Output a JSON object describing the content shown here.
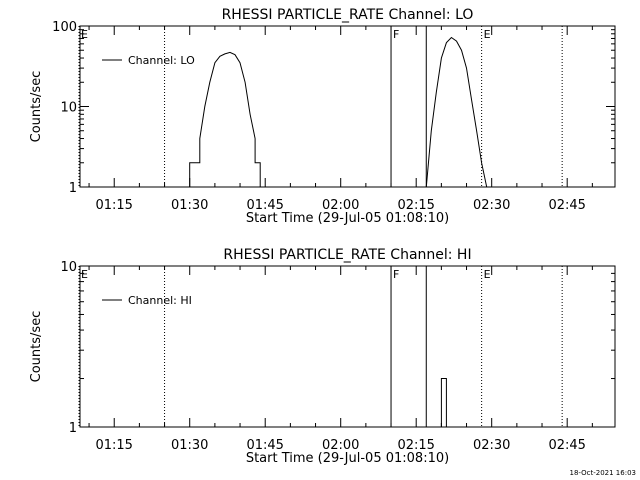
{
  "footer": {
    "timestamp": "18-Oct-2021 16:03"
  },
  "chart_data": [
    {
      "type": "line",
      "title": "RHESSI PARTICLE_RATE Channel: LO",
      "xlabel": "Start Time (29-Jul-05 01:08:10)",
      "ylabel": "Counts/sec",
      "y_scale": "log",
      "xlim_minutes": [
        68.2,
        174.5
      ],
      "ylim": [
        1,
        100
      ],
      "x_ticks": [
        "01:15",
        "01:30",
        "01:45",
        "02:00",
        "02:15",
        "02:30",
        "02:45"
      ],
      "y_ticks": [
        "1",
        "10",
        "100"
      ],
      "legend": {
        "position": "top-left",
        "entries": [
          "Channel: LO"
        ]
      },
      "markers": [
        {
          "label": "E",
          "time": "01:08",
          "style": "dotted"
        },
        {
          "label": "",
          "time": "01:25",
          "style": "dotted"
        },
        {
          "label": "F",
          "time": "02:10",
          "style": "solid"
        },
        {
          "label": "",
          "time": "02:17",
          "style": "solid"
        },
        {
          "label": "E",
          "time": "02:28",
          "style": "dotted"
        },
        {
          "label": "",
          "time": "02:44",
          "style": "dotted"
        }
      ],
      "series": [
        {
          "name": "Channel: LO",
          "x": [
            "01:30",
            "01:30",
            "01:32",
            "01:32",
            "01:33",
            "01:34",
            "01:35",
            "01:36",
            "01:37",
            "01:38",
            "01:39",
            "01:40",
            "01:41",
            "01:42",
            "01:43",
            "01:43",
            "01:44",
            "01:44"
          ],
          "values": [
            1,
            2,
            2,
            4,
            10,
            20,
            35,
            42,
            45,
            47,
            44,
            35,
            20,
            8,
            4,
            2,
            2,
            1
          ]
        },
        {
          "name": "Channel: LO",
          "x": [
            "02:17",
            "02:18",
            "02:19",
            "02:20",
            "02:21",
            "02:22",
            "02:23",
            "02:24",
            "02:25",
            "02:26",
            "02:27",
            "02:28",
            "02:28",
            "02:29"
          ],
          "values": [
            1,
            5,
            15,
            40,
            62,
            72,
            65,
            50,
            30,
            12,
            5,
            2,
            2,
            1
          ]
        }
      ]
    },
    {
      "type": "line",
      "title": "RHESSI PARTICLE_RATE Channel: HI",
      "xlabel": "Start Time (29-Jul-05 01:08:10)",
      "ylabel": "Counts/sec",
      "y_scale": "log",
      "xlim_minutes": [
        68.2,
        174.5
      ],
      "ylim": [
        1,
        10
      ],
      "x_ticks": [
        "01:15",
        "01:30",
        "01:45",
        "02:00",
        "02:15",
        "02:30",
        "02:45"
      ],
      "y_ticks": [
        "1",
        "10"
      ],
      "legend": {
        "position": "top-left",
        "entries": [
          "Channel: HI"
        ]
      },
      "markers": [
        {
          "label": "E",
          "time": "01:08",
          "style": "dotted"
        },
        {
          "label": "",
          "time": "01:25",
          "style": "dotted"
        },
        {
          "label": "F",
          "time": "02:10",
          "style": "solid"
        },
        {
          "label": "",
          "time": "02:17",
          "style": "solid"
        },
        {
          "label": "E",
          "time": "02:28",
          "style": "dotted"
        },
        {
          "label": "",
          "time": "02:44",
          "style": "dotted"
        }
      ],
      "series": [
        {
          "name": "Channel: HI",
          "x": [
            "02:20",
            "02:20",
            "02:21",
            "02:21"
          ],
          "values": [
            1,
            2,
            2,
            1
          ]
        }
      ]
    }
  ]
}
